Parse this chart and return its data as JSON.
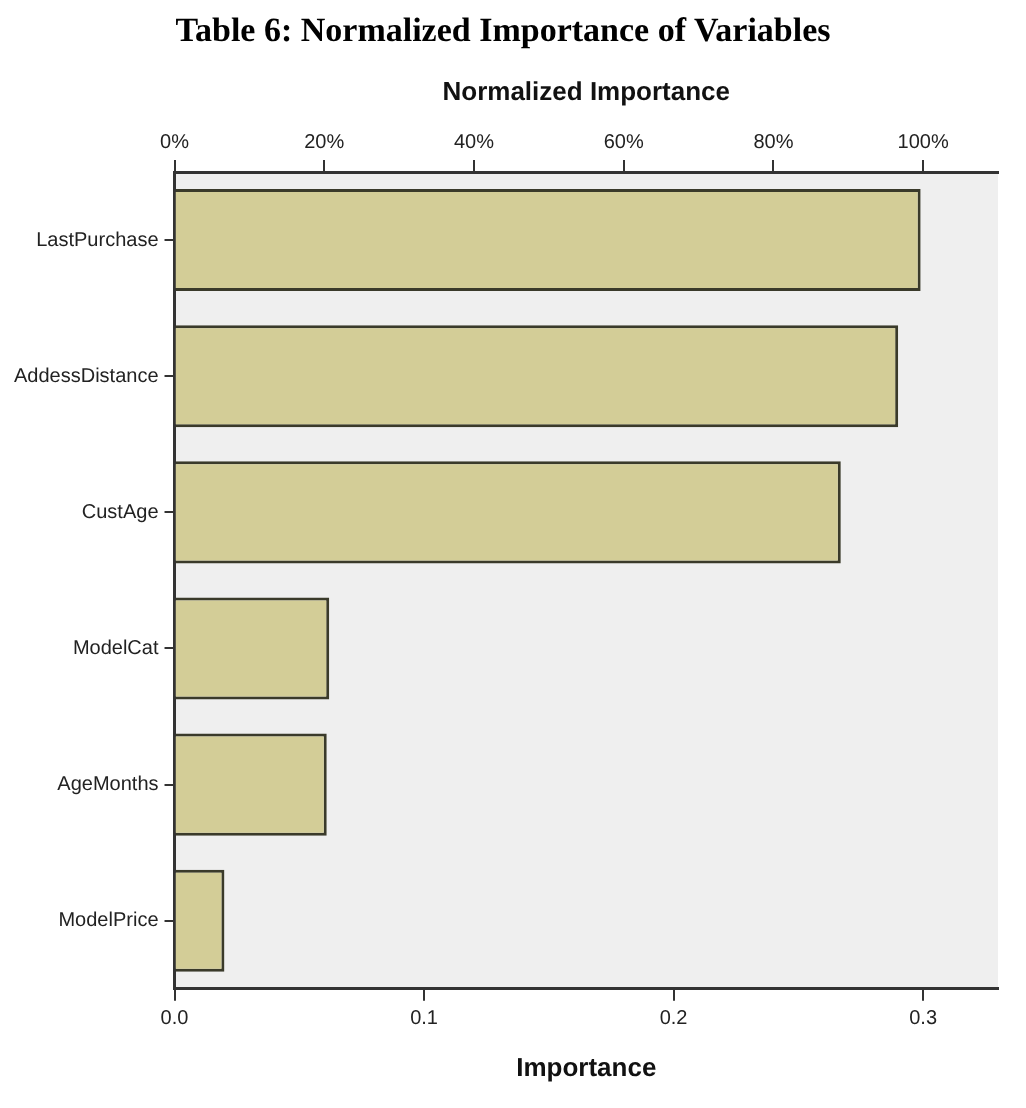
{
  "chart_data": {
    "type": "bar",
    "orientation": "horizontal",
    "title": "Table 6: Normalized Importance of Variables",
    "xlabel": "Importance",
    "x2label": "Normalized Importance",
    "categories": [
      "LastPurchase",
      "AddessDistance",
      "CustAge",
      "ModelCat",
      "AgeMonths",
      "ModelPrice"
    ],
    "values": [
      0.299,
      0.29,
      0.267,
      0.062,
      0.061,
      0.02
    ],
    "color": "#d3cd97",
    "xlim": [
      0,
      0.33
    ],
    "xticks": [
      {
        "value": 0,
        "label": "0.0"
      },
      0.1,
      0.2,
      0.3
    ],
    "x2lim": [
      0,
      110
    ],
    "x2ticks": [
      {
        "value": 0,
        "label": "0%"
      },
      {
        "value": 20,
        "label": "20%"
      },
      {
        "value": 40,
        "label": "40%"
      },
      {
        "value": 60,
        "label": "60%"
      },
      {
        "value": 80,
        "label": "80%"
      },
      {
        "value": 100,
        "label": "100%"
      }
    ],
    "grid": false,
    "legend": false
  }
}
